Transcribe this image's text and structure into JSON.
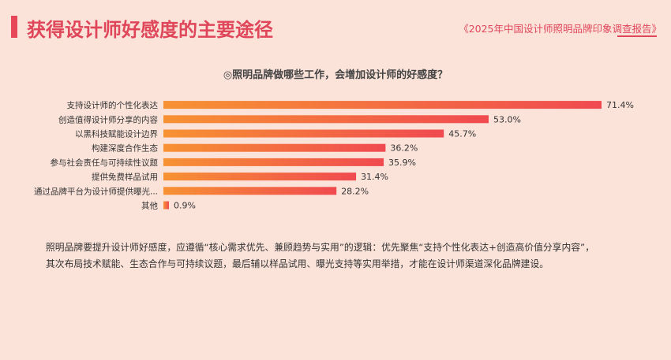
{
  "header": {
    "title": "获得设计师好感度的主要途径",
    "source": "《2025年中国设计师照明品牌印象调查报告》"
  },
  "chart_data": {
    "type": "bar",
    "orientation": "horizontal",
    "title": "◎照明品牌做哪些工作，会增加设计师的好感度？",
    "categories": [
      "支持设计师的个性化表达",
      "创造值得设计师分享的内容",
      "以黑科技赋能设计边界",
      "构建深度合作生态",
      "参与社会责任与可持续性议题",
      "提供免费样品试用",
      "通过品牌平台为设计师提供曝光...",
      "其他"
    ],
    "values": [
      71.4,
      53.0,
      45.7,
      36.2,
      35.9,
      31.4,
      28.2,
      0.9
    ],
    "value_labels": [
      "71.4%",
      "53.0%",
      "45.7%",
      "36.2%",
      "35.9%",
      "31.4%",
      "28.2%",
      "0.9%"
    ],
    "xlim": [
      0,
      71.4
    ],
    "grid": false,
    "colors": {
      "bar_start": "#f79233",
      "bar_end": "#f04a50"
    }
  },
  "summary": {
    "line1": "照明品牌要提升设计师好感度，应遵循“核心需求优先、兼顾趋势与实用”的逻辑：优先聚焦“支持个性化表达+创造高价值分享内容”，",
    "line2": "其次布局技术赋能、生态合作与可持续议题，最后辅以样品试用、曝光支持等实用举措，才能在设计师渠道深化品牌建设。"
  }
}
